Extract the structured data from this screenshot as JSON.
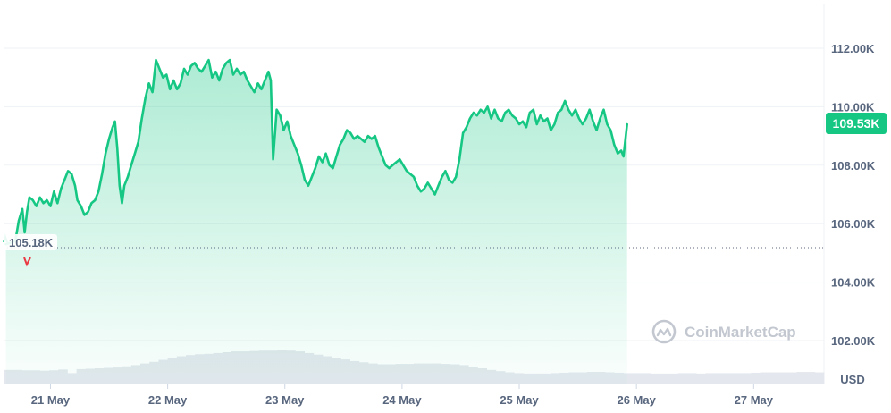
{
  "chart_data": {
    "type": "area",
    "currency_unit": "USD",
    "watermark": "CoinMarketCap",
    "current_price_label": "109.53K",
    "open_price_label": "105.18K",
    "ylim": [
      100500,
      113500
    ],
    "y_ticks": [
      {
        "value": 112000,
        "label": "112.00K"
      },
      {
        "value": 110000,
        "label": "110.00K"
      },
      {
        "value": 108000,
        "label": "108.00K"
      },
      {
        "value": 106000,
        "label": "106.00K"
      },
      {
        "value": 104000,
        "label": "104.00K"
      },
      {
        "value": 102000,
        "label": "102.00K"
      }
    ],
    "x_ticks": [
      {
        "t": 20.4,
        "label": "21 May"
      },
      {
        "t": 21.4,
        "label": "22 May"
      },
      {
        "t": 22.4,
        "label": "23 May"
      },
      {
        "t": 23.4,
        "label": "24 May"
      },
      {
        "t": 24.4,
        "label": "25 May"
      },
      {
        "t": 25.4,
        "label": "26 May"
      },
      {
        "t": 26.4,
        "label": "27 May"
      }
    ],
    "xlim": [
      20.0,
      27.0
    ],
    "line_color": "#16c784",
    "down_color": "#ea3943",
    "series": [
      {
        "values": [
          [
            20.02,
            105.3
          ],
          [
            20.1,
            105.4
          ],
          [
            20.13,
            106.1
          ],
          [
            20.16,
            106.5
          ],
          [
            20.18,
            105.7
          ],
          [
            20.2,
            106.4
          ],
          [
            20.22,
            106.9
          ],
          [
            20.25,
            106.8
          ],
          [
            20.28,
            106.6
          ],
          [
            20.31,
            106.9
          ],
          [
            20.34,
            106.7
          ],
          [
            20.37,
            106.8
          ],
          [
            20.4,
            106.6
          ],
          [
            20.43,
            107.1
          ],
          [
            20.46,
            106.7
          ],
          [
            20.49,
            107.2
          ],
          [
            20.52,
            107.5
          ],
          [
            20.55,
            107.8
          ],
          [
            20.58,
            107.7
          ],
          [
            20.61,
            107.3
          ],
          [
            20.63,
            106.8
          ],
          [
            20.66,
            106.6
          ],
          [
            20.69,
            106.3
          ],
          [
            20.72,
            106.4
          ],
          [
            20.75,
            106.7
          ],
          [
            20.78,
            106.8
          ],
          [
            20.81,
            107.1
          ],
          [
            20.84,
            107.7
          ],
          [
            20.87,
            108.4
          ],
          [
            20.9,
            108.9
          ],
          [
            20.93,
            109.3
          ],
          [
            20.95,
            109.5
          ],
          [
            20.97,
            108.6
          ],
          [
            20.99,
            107.3
          ],
          [
            21.01,
            106.7
          ],
          [
            21.03,
            107.3
          ],
          [
            21.06,
            107.6
          ],
          [
            21.09,
            108.0
          ],
          [
            21.12,
            108.4
          ],
          [
            21.15,
            108.8
          ],
          [
            21.18,
            109.6
          ],
          [
            21.21,
            110.3
          ],
          [
            21.24,
            110.8
          ],
          [
            21.27,
            110.5
          ],
          [
            21.3,
            111.6
          ],
          [
            21.33,
            111.3
          ],
          [
            21.36,
            111.0
          ],
          [
            21.39,
            111.1
          ],
          [
            21.42,
            110.6
          ],
          [
            21.45,
            110.9
          ],
          [
            21.48,
            110.6
          ],
          [
            21.51,
            110.8
          ],
          [
            21.54,
            111.3
          ],
          [
            21.57,
            111.1
          ],
          [
            21.6,
            111.4
          ],
          [
            21.63,
            111.5
          ],
          [
            21.66,
            111.3
          ],
          [
            21.69,
            111.2
          ],
          [
            21.72,
            111.4
          ],
          [
            21.75,
            111.6
          ],
          [
            21.78,
            111.0
          ],
          [
            21.81,
            111.2
          ],
          [
            21.84,
            110.9
          ],
          [
            21.87,
            111.3
          ],
          [
            21.9,
            111.5
          ],
          [
            21.93,
            111.6
          ],
          [
            21.96,
            111.1
          ],
          [
            21.99,
            111.3
          ],
          [
            22.02,
            111.1
          ],
          [
            22.05,
            111.2
          ],
          [
            22.08,
            110.9
          ],
          [
            22.11,
            110.7
          ],
          [
            22.14,
            110.5
          ],
          [
            22.17,
            110.8
          ],
          [
            22.2,
            110.6
          ],
          [
            22.23,
            110.9
          ],
          [
            22.26,
            111.2
          ],
          [
            22.28,
            110.9
          ],
          [
            22.3,
            108.2
          ],
          [
            22.33,
            109.9
          ],
          [
            22.36,
            109.7
          ],
          [
            22.39,
            109.2
          ],
          [
            22.42,
            109.5
          ],
          [
            22.45,
            109.0
          ],
          [
            22.48,
            108.7
          ],
          [
            22.51,
            108.4
          ],
          [
            22.54,
            108.0
          ],
          [
            22.57,
            107.5
          ],
          [
            22.6,
            107.3
          ],
          [
            22.63,
            107.6
          ],
          [
            22.66,
            107.9
          ],
          [
            22.69,
            108.3
          ],
          [
            22.72,
            108.1
          ],
          [
            22.75,
            108.4
          ],
          [
            22.78,
            108.0
          ],
          [
            22.81,
            107.9
          ],
          [
            22.84,
            108.3
          ],
          [
            22.87,
            108.7
          ],
          [
            22.9,
            108.9
          ],
          [
            22.93,
            109.2
          ],
          [
            22.96,
            109.1
          ],
          [
            22.99,
            108.9
          ],
          [
            23.02,
            109.0
          ],
          [
            23.05,
            108.9
          ],
          [
            23.08,
            108.8
          ],
          [
            23.11,
            109.0
          ],
          [
            23.14,
            108.9
          ],
          [
            23.17,
            109.0
          ],
          [
            23.2,
            108.6
          ],
          [
            23.23,
            108.3
          ],
          [
            23.26,
            108.0
          ],
          [
            23.29,
            107.9
          ],
          [
            23.32,
            108.0
          ],
          [
            23.35,
            108.1
          ],
          [
            23.38,
            108.2
          ],
          [
            23.41,
            108.0
          ],
          [
            23.44,
            107.8
          ],
          [
            23.47,
            107.7
          ],
          [
            23.5,
            107.6
          ],
          [
            23.53,
            107.3
          ],
          [
            23.56,
            107.1
          ],
          [
            23.59,
            107.2
          ],
          [
            23.62,
            107.4
          ],
          [
            23.65,
            107.2
          ],
          [
            23.68,
            107.0
          ],
          [
            23.71,
            107.3
          ],
          [
            23.74,
            107.6
          ],
          [
            23.77,
            107.8
          ],
          [
            23.8,
            107.5
          ],
          [
            23.83,
            107.4
          ],
          [
            23.86,
            107.6
          ],
          [
            23.89,
            108.2
          ],
          [
            23.92,
            109.1
          ],
          [
            23.95,
            109.3
          ],
          [
            23.98,
            109.6
          ],
          [
            24.01,
            109.8
          ],
          [
            24.04,
            109.7
          ],
          [
            24.07,
            109.9
          ],
          [
            24.1,
            109.8
          ],
          [
            24.13,
            110.0
          ],
          [
            24.16,
            109.6
          ],
          [
            24.19,
            109.9
          ],
          [
            24.22,
            109.6
          ],
          [
            24.25,
            109.5
          ],
          [
            24.28,
            109.8
          ],
          [
            24.31,
            109.9
          ],
          [
            24.34,
            109.7
          ],
          [
            24.37,
            109.6
          ],
          [
            24.4,
            109.4
          ],
          [
            24.43,
            109.5
          ],
          [
            24.46,
            109.3
          ],
          [
            24.49,
            109.8
          ],
          [
            24.52,
            109.9
          ],
          [
            24.55,
            109.4
          ],
          [
            24.58,
            109.7
          ],
          [
            24.61,
            109.5
          ],
          [
            24.64,
            109.6
          ],
          [
            24.67,
            109.2
          ],
          [
            24.7,
            109.4
          ],
          [
            24.73,
            109.8
          ],
          [
            24.76,
            109.9
          ],
          [
            24.79,
            110.2
          ],
          [
            24.82,
            109.9
          ],
          [
            24.85,
            109.7
          ],
          [
            24.88,
            109.9
          ],
          [
            24.91,
            109.6
          ],
          [
            24.94,
            109.4
          ],
          [
            24.97,
            109.6
          ],
          [
            25.0,
            109.9
          ],
          [
            25.03,
            109.5
          ],
          [
            25.06,
            109.2
          ],
          [
            25.09,
            109.6
          ],
          [
            25.12,
            109.9
          ],
          [
            25.15,
            109.4
          ],
          [
            25.18,
            109.2
          ],
          [
            25.21,
            108.7
          ],
          [
            25.24,
            108.4
          ],
          [
            25.27,
            108.5
          ],
          [
            25.29,
            108.3
          ],
          [
            25.32,
            109.4
          ]
        ]
      }
    ],
    "volume_fraction": [
      0.36,
      0.36,
      0.35,
      0.35,
      0.34,
      0.35,
      0.37,
      0.28,
      0.38,
      0.39,
      0.4,
      0.41,
      0.42,
      0.45,
      0.48,
      0.52,
      0.56,
      0.61,
      0.66,
      0.7,
      0.73,
      0.75,
      0.76,
      0.78,
      0.8,
      0.82,
      0.82,
      0.83,
      0.84,
      0.84,
      0.85,
      0.84,
      0.82,
      0.78,
      0.74,
      0.7,
      0.66,
      0.62,
      0.58,
      0.55,
      0.52,
      0.5,
      0.5,
      0.51,
      0.51,
      0.52,
      0.52,
      0.52,
      0.51,
      0.5,
      0.48,
      0.44,
      0.4,
      0.36,
      0.33,
      0.3,
      0.28,
      0.27,
      0.27,
      0.27,
      0.28,
      0.29,
      0.3,
      0.3,
      0.31,
      0.31,
      0.3,
      0.29,
      0.28,
      0.28,
      0.28,
      0.27,
      0.27,
      0.27,
      0.28,
      0.28,
      0.27,
      0.28,
      0.28,
      0.28,
      0.28,
      0.28,
      0.29,
      0.3,
      0.3,
      0.3,
      0.3,
      0.31,
      0.31,
      0.3
    ]
  }
}
